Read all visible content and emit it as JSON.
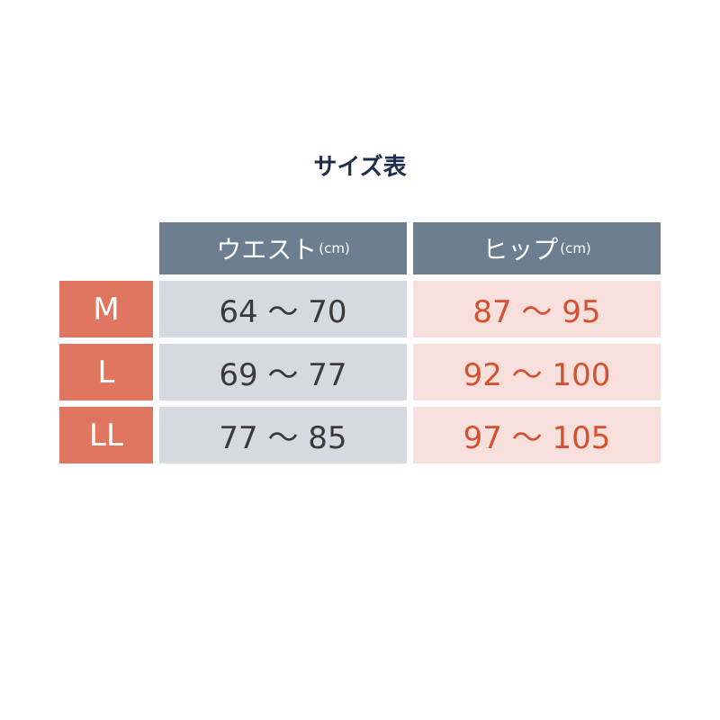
{
  "title": "サイズ表",
  "headers": [
    {
      "label": "ウエスト",
      "unit": "(cm)"
    },
    {
      "label": "ヒップ",
      "unit": "(cm)"
    }
  ],
  "rows": [
    {
      "size": "M",
      "waist": "64 ～ 70",
      "hip": "87 ～ 95"
    },
    {
      "size": "L",
      "waist": "69 ～ 77",
      "hip": "92 ～ 100"
    },
    {
      "size": "LL",
      "waist": "77 ～ 85",
      "hip": "97 ～ 105"
    }
  ],
  "colors": {
    "header": "#6d7e90",
    "size_cell": "#e07560",
    "waist_cell": "#d5dae0",
    "hip_cell": "#f9dfdc",
    "hip_text": "#d5502f",
    "title": "#1f2d4d"
  }
}
